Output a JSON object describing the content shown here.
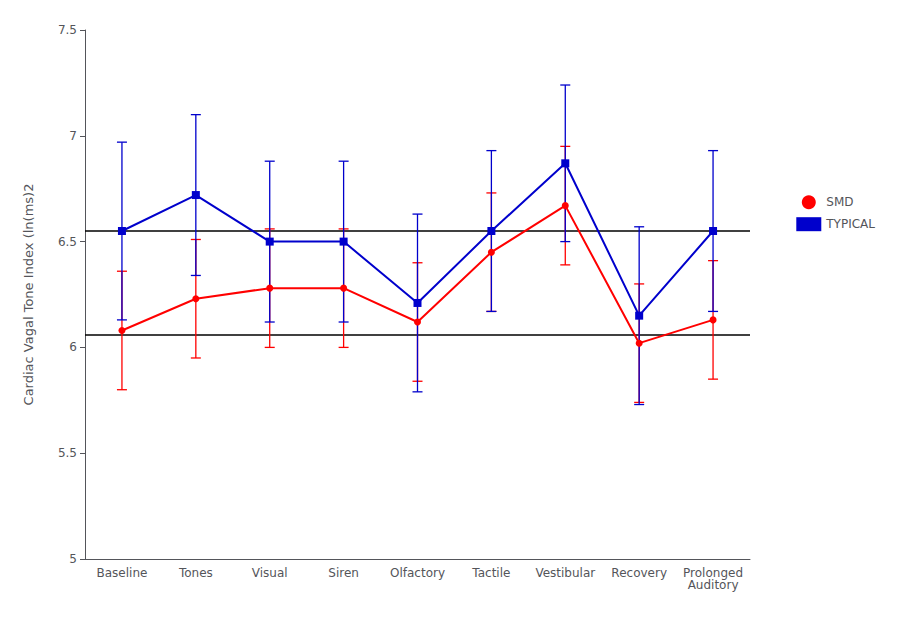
{
  "chart_data": {
    "type": "line",
    "categories": [
      "Baseline",
      "Tones",
      "Visual",
      "Siren",
      "Olfactory",
      "Tactile",
      "Vestibular",
      "Recovery",
      "Prolonged\nAuditory"
    ],
    "series": [
      {
        "name": "SMD",
        "color": "#FF0000",
        "marker": "circle",
        "values": [
          6.08,
          6.23,
          6.28,
          6.28,
          6.12,
          6.45,
          6.67,
          6.02,
          6.13
        ],
        "err_upper": [
          0.28,
          0.28,
          0.28,
          0.28,
          0.28,
          0.28,
          0.28,
          0.28,
          0.28
        ],
        "err_lower": [
          0.28,
          0.28,
          0.28,
          0.28,
          0.28,
          0.28,
          0.28,
          0.28,
          0.28
        ]
      },
      {
        "name": "TYPICAL",
        "color": "#0000CC",
        "marker": "square",
        "values": [
          6.55,
          6.72,
          6.5,
          6.5,
          6.21,
          6.55,
          6.87,
          6.15,
          6.55
        ],
        "err_upper": [
          0.42,
          0.38,
          0.38,
          0.38,
          0.42,
          0.38,
          0.37,
          0.42,
          0.38
        ],
        "err_lower": [
          0.42,
          0.38,
          0.38,
          0.38,
          0.42,
          0.38,
          0.37,
          0.42,
          0.38
        ]
      }
    ],
    "hlines": [
      6.06,
      6.55
    ],
    "ylabel": "Cardiac Vagal Tone Index (ln(ms)2",
    "ylim": [
      5.0,
      7.5
    ],
    "yticks": [
      5,
      5.5,
      6,
      6.5,
      7,
      7.5
    ],
    "grid": false,
    "legend": "right"
  }
}
